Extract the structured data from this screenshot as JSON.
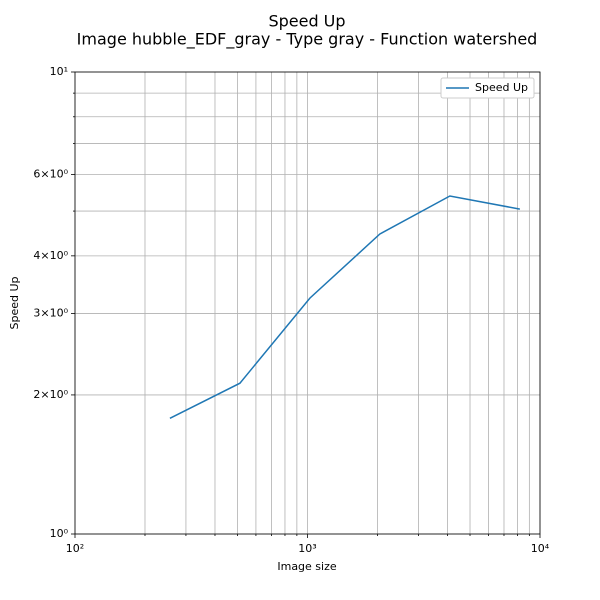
{
  "chart_data": {
    "type": "line",
    "title": "Speed Up",
    "subtitle": "Image hubble_EDF_gray - Type gray - Function watershed",
    "x_label": "Image size",
    "y_label": "Speed Up",
    "x": [
      256,
      512,
      1024,
      2048,
      4096,
      8192
    ],
    "series": [
      {
        "name": "Speed Up",
        "color": "#1f77b4",
        "values": [
          1.78,
          2.12,
          3.24,
          4.46,
          5.39,
          5.05
        ]
      }
    ],
    "xscale": "log",
    "yscale": "log",
    "xlim": [
      100,
      10000
    ],
    "xticks": [
      {
        "value": 100,
        "label": "10²"
      },
      {
        "value": 1000,
        "label": "10³"
      },
      {
        "value": 10000,
        "label": "10⁴"
      }
    ],
    "xminorticks": [
      200,
      300,
      400,
      500,
      600,
      700,
      800,
      900,
      2000,
      3000,
      4000,
      5000,
      6000,
      7000,
      8000,
      9000
    ],
    "ylim": [
      1,
      10
    ],
    "yticks": [
      {
        "value": 1,
        "label": "10⁰"
      },
      {
        "value": 2,
        "label": "2×10⁰"
      },
      {
        "value": 3,
        "label": "3×10⁰"
      },
      {
        "value": 4,
        "label": "4×10⁰"
      },
      {
        "value": 6,
        "label": "6×10⁰"
      },
      {
        "value": 10,
        "label": "10¹"
      }
    ],
    "yminorticks": [
      5,
      7,
      8,
      9
    ],
    "grid": true,
    "legend": "upper right"
  }
}
